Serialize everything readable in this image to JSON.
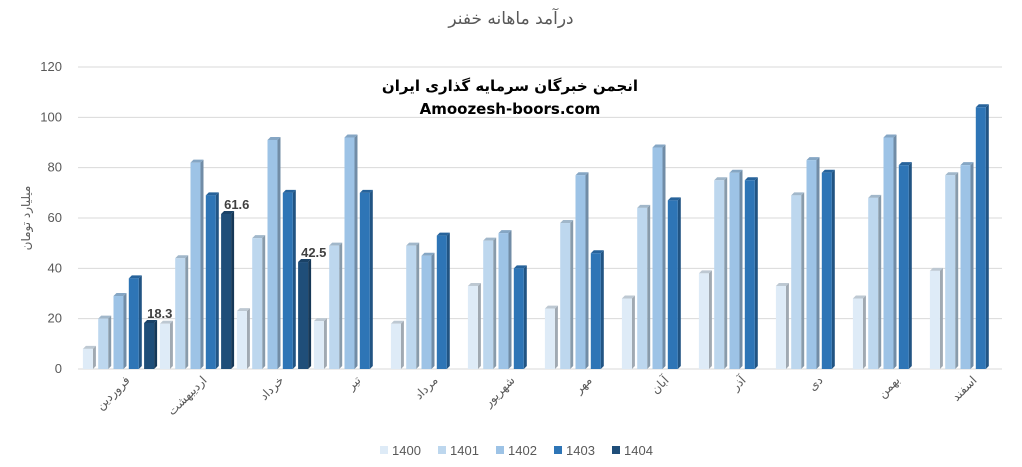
{
  "chart_data": {
    "type": "bar",
    "title": "درآمد ماهانه خفنر",
    "ylabel": "میلیارد تومان",
    "xlabel": "",
    "ylim": [
      0,
      120
    ],
    "yticks": [
      0,
      20,
      40,
      60,
      80,
      100,
      120
    ],
    "grid": true,
    "legend_position": "bottom",
    "categories": [
      "فروردین",
      "اردیبهشت",
      "خرداد",
      "تیر",
      "مرداد",
      "شهریور",
      "مهر",
      "آبان",
      "آذر",
      "دی",
      "بهمن",
      "اسفند"
    ],
    "series": [
      {
        "name": "1400",
        "color": "#deebf7",
        "values": [
          8,
          18,
          23,
          19,
          18,
          33,
          24,
          28,
          38,
          33,
          28,
          39
        ]
      },
      {
        "name": "1401",
        "color": "#bdd7ee",
        "values": [
          20,
          44,
          52,
          49,
          49,
          51,
          58,
          64,
          75,
          69,
          68,
          77
        ]
      },
      {
        "name": "1402",
        "color": "#9dc3e6",
        "values": [
          29,
          82,
          91,
          92,
          45,
          54,
          77,
          88,
          78,
          83,
          92,
          81
        ]
      },
      {
        "name": "1403",
        "color": "#2e75b6",
        "values": [
          36,
          69,
          70,
          70,
          53,
          40,
          46,
          67,
          75,
          78,
          81,
          104
        ]
      },
      {
        "name": "1404",
        "color": "#1f4e79",
        "values": [
          18.3,
          61.6,
          42.5,
          null,
          null,
          null,
          null,
          null,
          null,
          null,
          null,
          null
        ]
      }
    ],
    "data_labels": [
      {
        "series": "1404",
        "category_index": 0,
        "text": "18.3"
      },
      {
        "series": "1404",
        "category_index": 1,
        "text": "61.6"
      },
      {
        "series": "1404",
        "category_index": 2,
        "text": "42.5"
      }
    ]
  },
  "watermark": {
    "line1": "انجمن خبرگان سرمایه گذاری ایران",
    "line2": "Amoozesh-boors.com"
  }
}
